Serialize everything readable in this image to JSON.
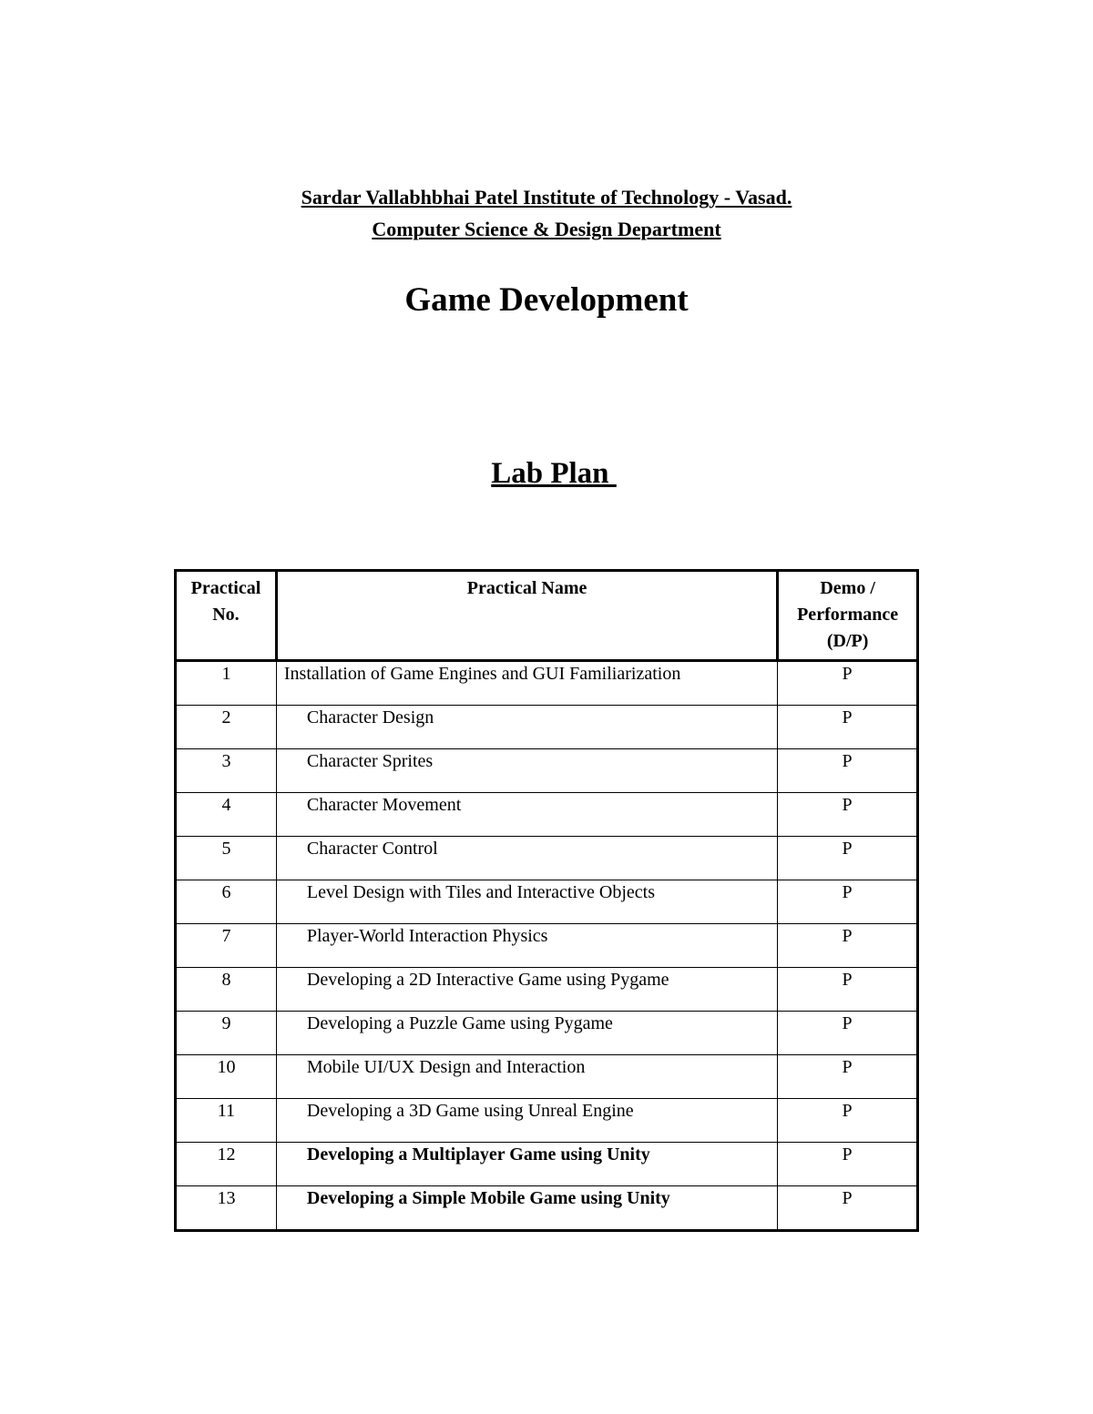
{
  "header": {
    "institute": "Sardar Vallabhbhai Patel Institute of Technology - Vasad.",
    "department": "Computer Science & Design Department",
    "course": "Game Development",
    "section": "Lab Plan "
  },
  "table": {
    "columns": [
      "Practical No.",
      "Practical Name",
      "Demo / Performance (D/P)"
    ],
    "rows": [
      {
        "no": "1",
        "name": "Installation of Game Engines and GUI Familiarization",
        "dp": "P"
      },
      {
        "no": "2",
        "name": "Character Design",
        "dp": "P"
      },
      {
        "no": "3",
        "name": "Character Sprites",
        "dp": "P"
      },
      {
        "no": "4",
        "name": "Character Movement",
        "dp": "P"
      },
      {
        "no": "5",
        "name": "Character Control",
        "dp": "P"
      },
      {
        "no": "6",
        "name": "Level Design with Tiles and Interactive Objects",
        "dp": "P"
      },
      {
        "no": "7",
        "name": "Player-World Interaction Physics",
        "dp": "P"
      },
      {
        "no": "8",
        "name": "Developing a 2D Interactive Game using Pygame",
        "dp": "P"
      },
      {
        "no": "9",
        "name": "Developing a Puzzle Game using Pygame",
        "dp": "P"
      },
      {
        "no": "10",
        "name": "Mobile UI/UX Design and Interaction",
        "dp": "P"
      },
      {
        "no": "11",
        "name": "Developing a 3D Game using Unreal Engine",
        "dp": "P"
      },
      {
        "no": "12",
        "name": "Developing a Multiplayer Game using Unity",
        "dp": "P"
      },
      {
        "no": "13",
        "name": "Developing a Simple Mobile Game using Unity",
        "dp": "P"
      }
    ]
  }
}
